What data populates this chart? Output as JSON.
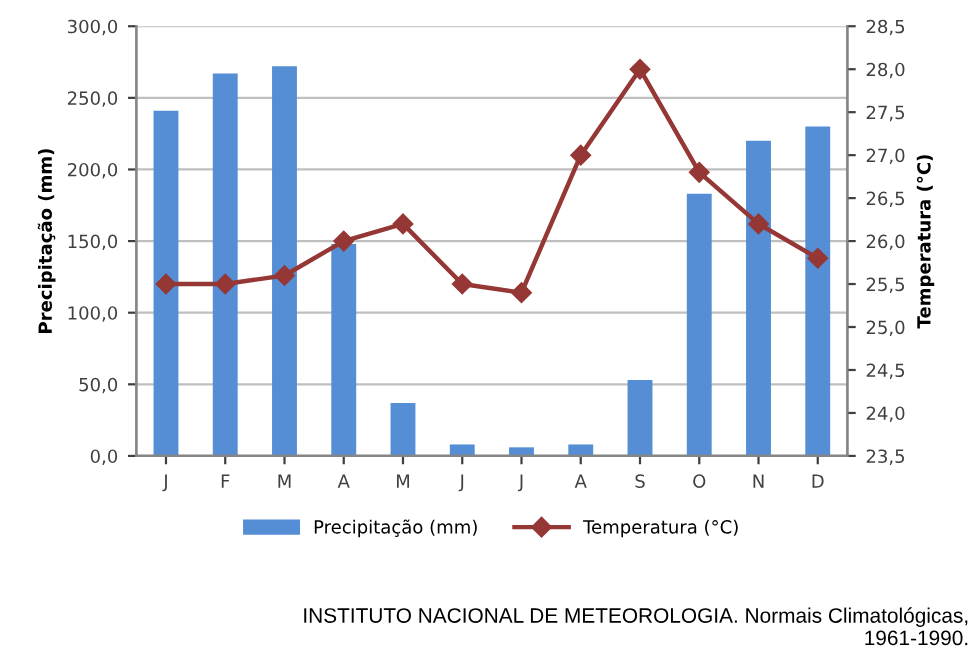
{
  "chart_data": {
    "type": "bar",
    "categories": [
      "J",
      "F",
      "M",
      "A",
      "M",
      "J",
      "J",
      "A",
      "S",
      "O",
      "N",
      "D"
    ],
    "ylabel": "Precipitação (mm)",
    "y2label": "Temperatura (°C)",
    "series": [
      {
        "name": "Precipitação (mm)",
        "color": "#558ed5",
        "values": [
          241,
          267,
          272,
          148,
          37,
          8,
          6,
          8,
          53,
          183,
          220,
          230
        ]
      },
      {
        "name": "Temperatura (°C)",
        "type": "line",
        "axis": "y2",
        "color": "#953735",
        "marker": "diamond",
        "values": [
          25.5,
          25.5,
          25.6,
          26.0,
          26.2,
          25.5,
          25.4,
          27.0,
          28.0,
          26.8,
          26.2,
          25.8
        ]
      }
    ],
    "ylim": [
      0,
      300
    ],
    "yticks": [
      {
        "value": 0,
        "label": "0,0"
      },
      {
        "value": 50,
        "label": "50,0"
      },
      {
        "value": 100,
        "label": "100,0"
      },
      {
        "value": 150,
        "label": "150,0"
      },
      {
        "value": 200,
        "label": "200,0"
      },
      {
        "value": 250,
        "label": "250,0"
      },
      {
        "value": 300,
        "label": "300,0"
      }
    ],
    "y2lim": [
      23.5,
      28.5
    ],
    "y2ticks": [
      {
        "value": 23.5,
        "label": "23,5"
      },
      {
        "value": 24.0,
        "label": "24,0"
      },
      {
        "value": 24.5,
        "label": "24,5"
      },
      {
        "value": 25.0,
        "label": "25,0"
      },
      {
        "value": 25.5,
        "label": "25,5"
      },
      {
        "value": 26.0,
        "label": "26,0"
      },
      {
        "value": 26.5,
        "label": "26,5"
      },
      {
        "value": 27.0,
        "label": "27,0"
      },
      {
        "value": 27.5,
        "label": "27,5"
      },
      {
        "value": 28.0,
        "label": "28,0"
      },
      {
        "value": 28.5,
        "label": "28,5"
      }
    ],
    "grid": "y",
    "legend": "bottom",
    "annotations": [
      "INSTITUTO NACIONAL DE METEOROLOGIA. Normais Climatológicas,\n1961-1990."
    ]
  }
}
